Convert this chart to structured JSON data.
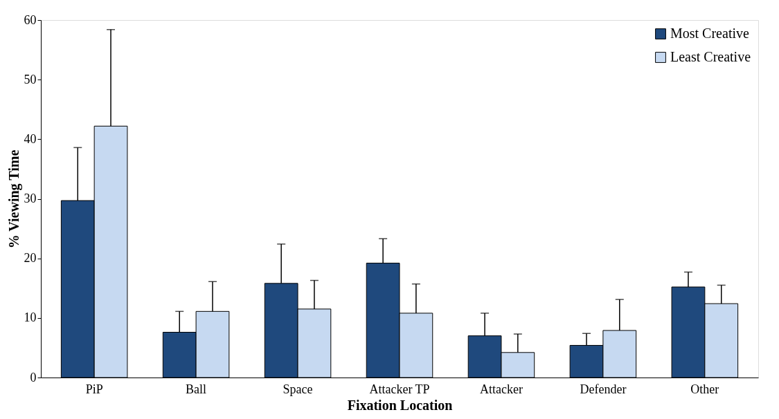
{
  "chart_data": {
    "type": "bar",
    "xlabel": "Fixation Location",
    "ylabel": "% Viewing Time",
    "categories": [
      "PiP",
      "Ball",
      "Space",
      "Attacker TP",
      "Attacker",
      "Defender",
      "Other"
    ],
    "series": [
      {
        "name": "Most Creative",
        "color": "#1f497d",
        "values": [
          29.7,
          7.6,
          15.8,
          19.2,
          7.0,
          5.4,
          15.2
        ],
        "errors": [
          [
            29.7,
            38.6
          ],
          [
            7.6,
            11.1
          ],
          [
            15.8,
            22.4
          ],
          [
            19.2,
            23.3
          ],
          [
            7.0,
            10.8
          ],
          [
            5.4,
            7.4
          ],
          [
            15.2,
            17.7
          ]
        ]
      },
      {
        "name": "Least Creative",
        "color": "#c6d9f1",
        "values": [
          42.2,
          11.1,
          11.5,
          10.8,
          4.2,
          7.9,
          12.4
        ],
        "errors": [
          [
            42.2,
            58.4
          ],
          [
            11.1,
            16.1
          ],
          [
            11.5,
            16.3
          ],
          [
            10.8,
            15.7
          ],
          [
            4.2,
            7.3
          ],
          [
            7.9,
            13.1
          ],
          [
            12.4,
            15.5
          ]
        ]
      }
    ],
    "ylim": [
      0,
      60
    ],
    "yticks": [
      0,
      10,
      20,
      30,
      40,
      50,
      60
    ],
    "grid": false,
    "legend": "top right"
  }
}
